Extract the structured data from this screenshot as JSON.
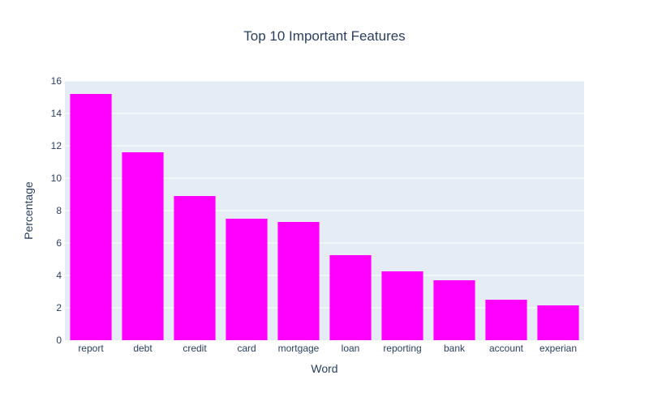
{
  "chart_data": {
    "type": "bar",
    "title": "Top 10 Important Features",
    "xlabel": "Word",
    "ylabel": "Percentage",
    "categories": [
      "report",
      "debt",
      "credit",
      "card",
      "mortgage",
      "loan",
      "reporting",
      "bank",
      "account",
      "experian"
    ],
    "values": [
      15.2,
      11.6,
      8.9,
      7.5,
      7.3,
      5.25,
      4.25,
      3.7,
      2.5,
      2.15
    ],
    "ylim": [
      0,
      16
    ],
    "yticks": [
      0,
      2,
      4,
      6,
      8,
      10,
      12,
      14,
      16
    ],
    "grid": true,
    "legend": "none",
    "colors": {
      "bar": "#ff00ff",
      "plot_background": "#e5ecf6",
      "grid": "#ffffff",
      "text": "#2a3f5f"
    }
  }
}
